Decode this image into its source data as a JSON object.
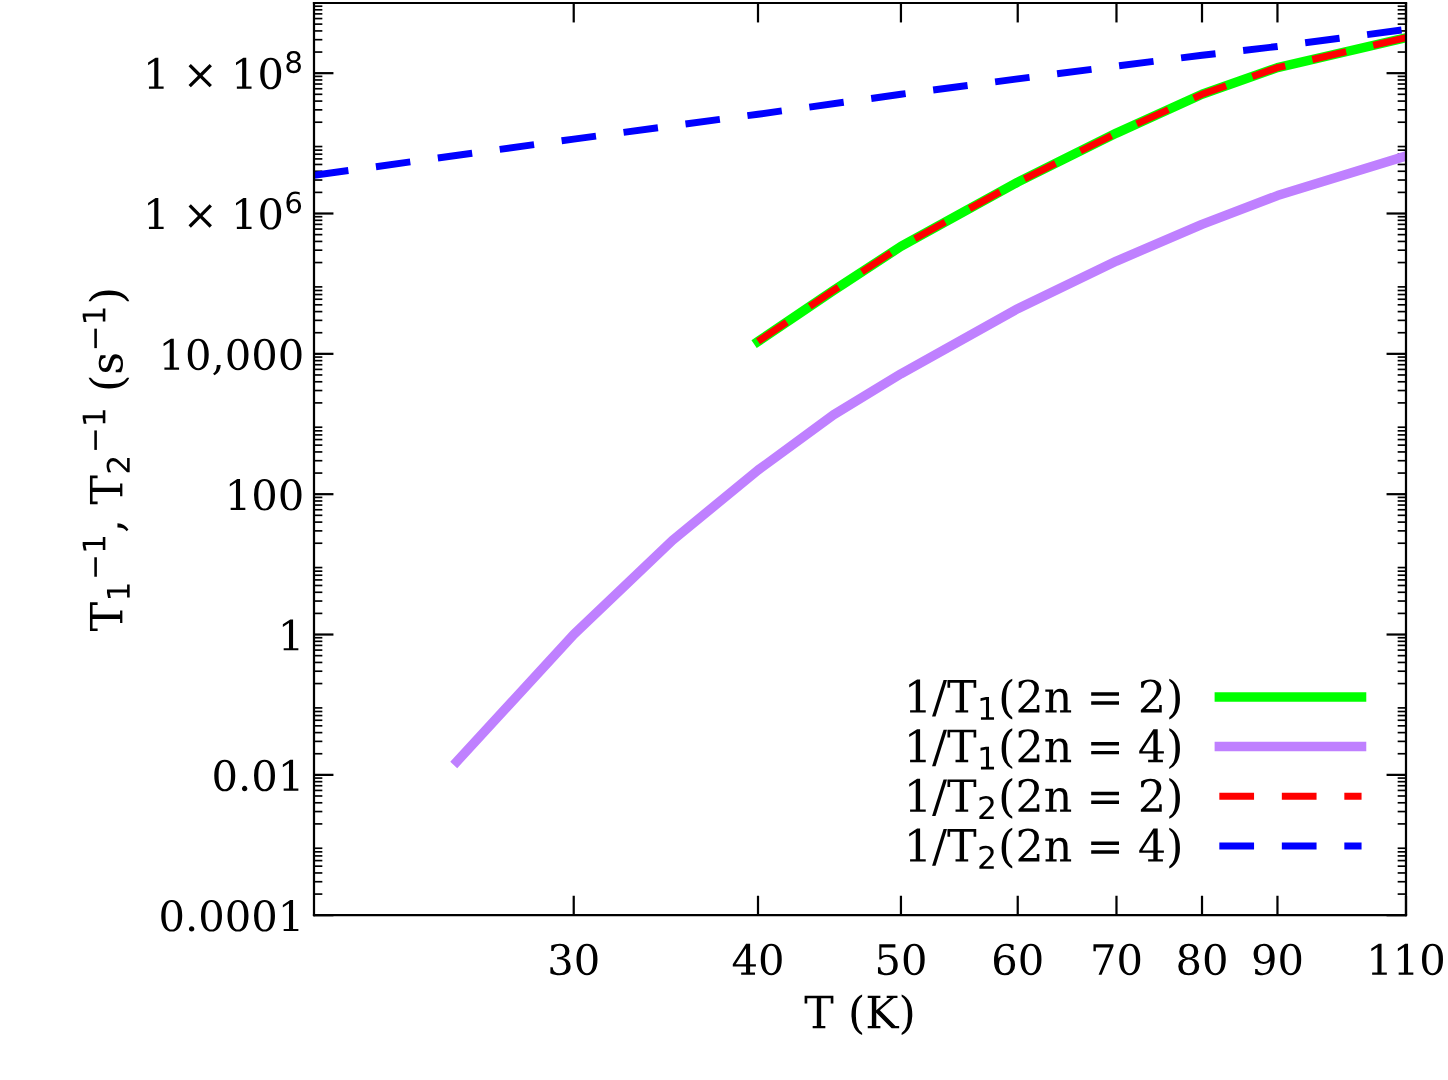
{
  "chart_data": {
    "type": "line",
    "xlabel": "T (K)",
    "ylabel": "T$_{1}$$^{−1}$, T$_{2}$$^{−1}$ (s$^{−1}$)",
    "log": "xy",
    "xlim": [
      20,
      110
    ],
    "ylim": [
      0.0001,
      1000000000
    ],
    "xticks": [
      30,
      40,
      50,
      60,
      70,
      80,
      90,
      110
    ],
    "yticks": [
      0.0001,
      0.01,
      1,
      100,
      {
        "value": 10000,
        "label": "10,000"
      },
      {
        "value": 1000000,
        "label": "1 × 10$^{6}$"
      },
      {
        "value": 100000000,
        "label": "1 × 10$^{8}$"
      }
    ],
    "grid": false,
    "legend": "bottom right",
    "marker": "none",
    "series": [
      {
        "name": "1/T$_{1}$(2n = 2)",
        "color": "#00ff00",
        "line_style": "solid",
        "x": [
          40,
          45,
          50,
          60,
          70,
          80,
          90,
          110
        ],
        "values": [
          15000,
          80000,
          340000,
          2800000,
          14000000,
          50000000,
          120000000,
          320000000
        ]
      },
      {
        "name": "1/T$_{1}$(2n = 4)",
        "color": "#bf80ff",
        "line_style": "solid",
        "x": [
          25,
          30,
          35,
          40,
          45,
          50,
          60,
          70,
          80,
          90,
          110
        ],
        "values": [
          0.0155,
          1,
          22,
          220,
          1350,
          5200,
          44000,
          210000,
          700000,
          1800000,
          6600000
        ]
      },
      {
        "name": "1/T$_{2}$(2n = 2)",
        "color": "#ff0000",
        "line_style": "dashed",
        "x": [
          40,
          45,
          50,
          60,
          70,
          80,
          90,
          110
        ],
        "values": [
          15000,
          80000,
          340000,
          2800000,
          14000000,
          50000000,
          120000000,
          320000000
        ]
      },
      {
        "name": "1/T$_{2}$(2n = 4)",
        "color": "#0000ff",
        "line_style": "dashed",
        "x": [
          20,
          30,
          40,
          50,
          60,
          70,
          80,
          90,
          110
        ],
        "values": [
          3500000,
          11500000,
          26000000,
          50000000,
          83000000,
          126000000,
          180000000,
          240000000,
          420000000
        ]
      }
    ]
  }
}
